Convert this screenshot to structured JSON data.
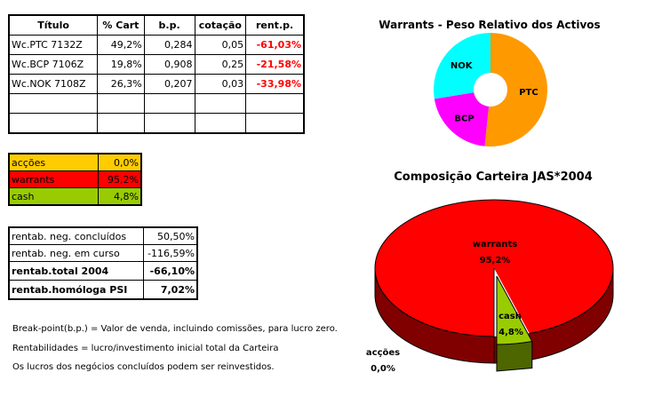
{
  "holdings_table": {
    "headers": [
      "Título",
      "% Cart",
      "b.p.",
      "cotação",
      "rent.p."
    ],
    "rows": [
      [
        "Wc.PTC 7132Z",
        "49,2%",
        "0,284",
        "0,05",
        "-61,03%"
      ],
      [
        "Wc.BCP 7106Z",
        "19,8%",
        "0,908",
        "0,25",
        "-21,58%"
      ],
      [
        "Wc.NOK 7108Z",
        "26,3%",
        "0,207",
        "0,03",
        "-33,98%"
      ]
    ],
    "negative_color": "#ff0000"
  },
  "allocation_table": [
    {
      "label": "acções",
      "value": "0,0%",
      "color": "#ffcc00"
    },
    {
      "label": "warrants",
      "value": "95,2%",
      "color": "#ff0000"
    },
    {
      "label": "cash",
      "value": "4,8%",
      "color": "#99cc00"
    }
  ],
  "returns_table": [
    {
      "label": "rentab. neg. concluídos",
      "value": "50,50%",
      "bold": false
    },
    {
      "label": "rentab. neg. em curso",
      "value": "-116,59%",
      "bold": false
    },
    {
      "label": "rentab.total 2004",
      "value": "-66,10%",
      "bold": true
    },
    {
      "label": "rentab.homóloga PSI",
      "value": "7,02%",
      "bold": true
    }
  ],
  "notes": [
    "Break-point(b.p.) = Valor de venda, incluindo comissões, para lucro zero.",
    "Rentabilidades = lucro/investimento inicial total da Carteira",
    "Os lucros dos negócios concluídos podem ser reinvestidos."
  ],
  "chart_data": [
    {
      "type": "pie",
      "subtype": "doughnut",
      "title": "Warrants - Peso Relativo dos Activos",
      "categories": [
        "PTC",
        "BCP",
        "NOK"
      ],
      "values": [
        49.2,
        19.8,
        26.3
      ],
      "colors": [
        "#ff9900",
        "#ff00ff",
        "#00ffff"
      ],
      "legend": "none"
    },
    {
      "type": "pie",
      "subtype": "3d-exploded",
      "title": "Composição Carteira JAS*2004",
      "categories": [
        "warrants",
        "cash",
        "acções"
      ],
      "values": [
        95.2,
        4.8,
        0.0
      ],
      "labels": [
        "95,2%",
        "4,8%",
        "0,0%"
      ],
      "colors": [
        "#ff0000",
        "#99cc00",
        "#ffcc00"
      ],
      "legend": "none"
    }
  ]
}
